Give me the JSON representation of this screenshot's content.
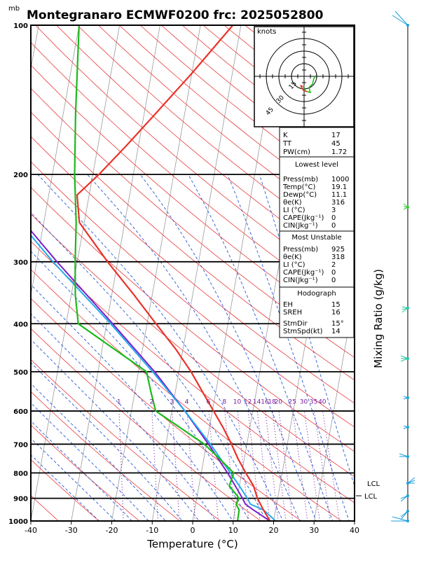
{
  "header": {
    "unit_mb": "mb",
    "title": "Montegranaro ECMWF0200  frc: 2025052800"
  },
  "axes": {
    "xlabel": "Temperature (°C)",
    "right_label": "Mixing Ratio (g/kg)",
    "pressure_ticks": [
      1000,
      900,
      800,
      700,
      600,
      500,
      400,
      300,
      200,
      100
    ],
    "temperature_ticks": [
      -40,
      -30,
      -20,
      -10,
      0,
      10,
      20,
      30,
      40
    ],
    "mixing_ratio_labels": [
      "1",
      "2",
      "3",
      "4",
      "6",
      "8",
      "10",
      "12",
      "14",
      "16",
      "18",
      "20",
      "25",
      "30",
      "35",
      "40"
    ]
  },
  "hodograph": {
    "unit": "knots",
    "ring_labels": [
      "15",
      "30",
      "45"
    ]
  },
  "stats": {
    "k_label": "K",
    "k": "17",
    "tt_label": "TT",
    "tt": "45",
    "pw_label": "PW(cm)",
    "pw": "1.72",
    "lowest_title": "Lowest level",
    "lowest": [
      {
        "label": "Press(mb)",
        "value": "1000"
      },
      {
        "label": "Temp(°C)",
        "value": "19.1"
      },
      {
        "label": "Dewp(°C)",
        "value": "11.1"
      },
      {
        "label": "θe(K)",
        "value": "316"
      },
      {
        "label": "LI (°C)",
        "value": "3"
      },
      {
        "label": "CAPE(Jkg⁻¹)",
        "value": "0"
      },
      {
        "label": "CIN(Jkg⁻¹)",
        "value": "0"
      }
    ],
    "mu_title": "Most Unstable",
    "mu": [
      {
        "label": "Press(mb)",
        "value": "925"
      },
      {
        "label": "θe(K)",
        "value": "318"
      },
      {
        "label": "LI (°C)",
        "value": "2"
      },
      {
        "label": "CAPE(Jkg⁻¹)",
        "value": "0"
      },
      {
        "label": "CIN(Jkg⁻¹)",
        "value": "0"
      }
    ],
    "hodo_title": "Hodograph",
    "hodo": [
      {
        "label": "EH",
        "value": "15"
      },
      {
        "label": "SREH",
        "value": "16"
      },
      {
        "label": "StmDir",
        "value": "15°"
      },
      {
        "label": "StmSpd(kt)",
        "value": "14"
      }
    ]
  },
  "lcl": {
    "label": "LCL",
    "inner_label": "LCL"
  },
  "colors": {
    "temperature": "#e8332a",
    "dewpoint": "#1aba1a",
    "parcel": "#7b1fc9",
    "virtual": "#22aaee",
    "dry_adiabat": "#e83a3a",
    "moist_adiabat": "#2a5ad8",
    "mixing_ratio": "#7a1a9a",
    "isotherm": "#9a9a9a"
  },
  "chart_data": {
    "type": "skew-t",
    "title": "Montegranaro ECMWF0200  frc: 2025052800",
    "xlabel": "Temperature (°C)",
    "ylabel": "mb",
    "xlim": [
      -40,
      40
    ],
    "ylim": [
      1000,
      100
    ],
    "series": [
      {
        "name": "Temperature",
        "points": [
          [
            1000,
            19.1
          ],
          [
            950,
            17
          ],
          [
            925,
            16
          ],
          [
            900,
            15
          ],
          [
            850,
            13.5
          ],
          [
            800,
            11
          ],
          [
            750,
            8.5
          ],
          [
            700,
            6.2
          ],
          [
            650,
            3.5
          ],
          [
            600,
            0.3
          ],
          [
            550,
            -3.2
          ],
          [
            500,
            -7
          ],
          [
            450,
            -11.8
          ],
          [
            400,
            -17.8
          ],
          [
            350,
            -24.5
          ],
          [
            300,
            -32.5
          ],
          [
            250,
            -41.2
          ],
          [
            220,
            -43
          ],
          [
            200,
            -38.5
          ],
          [
            175,
            -33
          ],
          [
            150,
            -27
          ],
          [
            125,
            -20
          ],
          [
            100,
            -12
          ]
        ]
      },
      {
        "name": "Dewpoint",
        "points": [
          [
            1000,
            11.1
          ],
          [
            950,
            11
          ],
          [
            925,
            10
          ],
          [
            900,
            10.5
          ],
          [
            850,
            7.5
          ],
          [
            800,
            8
          ],
          [
            750,
            4
          ],
          [
            700,
            -0.5
          ],
          [
            650,
            -7
          ],
          [
            600,
            -14
          ],
          [
            550,
            -16
          ],
          [
            500,
            -18
          ],
          [
            450,
            -27
          ],
          [
            400,
            -37
          ],
          [
            350,
            -39
          ],
          [
            300,
            -40.5
          ],
          [
            250,
            -42
          ],
          [
            200,
            -44.5
          ],
          [
            150,
            -47
          ],
          [
            100,
            -50
          ]
        ]
      },
      {
        "name": "Parcel",
        "points": [
          [
            1000,
            19.1
          ],
          [
            950,
            14.5
          ],
          [
            925,
            12.3
          ],
          [
            900,
            11.3
          ],
          [
            850,
            9
          ],
          [
            800,
            6.5
          ],
          [
            700,
            0.5
          ],
          [
            600,
            -6.8
          ],
          [
            500,
            -16
          ],
          [
            400,
            -28.5
          ],
          [
            300,
            -45
          ],
          [
            200,
            -67
          ],
          [
            100,
            -96
          ]
        ]
      },
      {
        "name": "Virtual temperature",
        "points": [
          [
            1000,
            20.5
          ],
          [
            950,
            17
          ],
          [
            925,
            13.5
          ],
          [
            900,
            12.5
          ],
          [
            850,
            10
          ],
          [
            800,
            7.2
          ],
          [
            700,
            1
          ],
          [
            600,
            -6.8
          ],
          [
            500,
            -16.5
          ],
          [
            400,
            -29
          ],
          [
            300,
            -46
          ],
          [
            200,
            -68
          ],
          [
            100,
            -98
          ]
        ]
      }
    ],
    "mixing_ratio_lines_gkg": [
      1,
      2,
      3,
      4,
      6,
      8,
      10,
      12,
      14,
      16,
      18,
      20,
      25,
      30,
      35,
      40
    ],
    "lcl_pressure_mb": 900,
    "stats": {
      "K": 17,
      "TT": 45,
      "PW_cm": 1.72
    }
  }
}
